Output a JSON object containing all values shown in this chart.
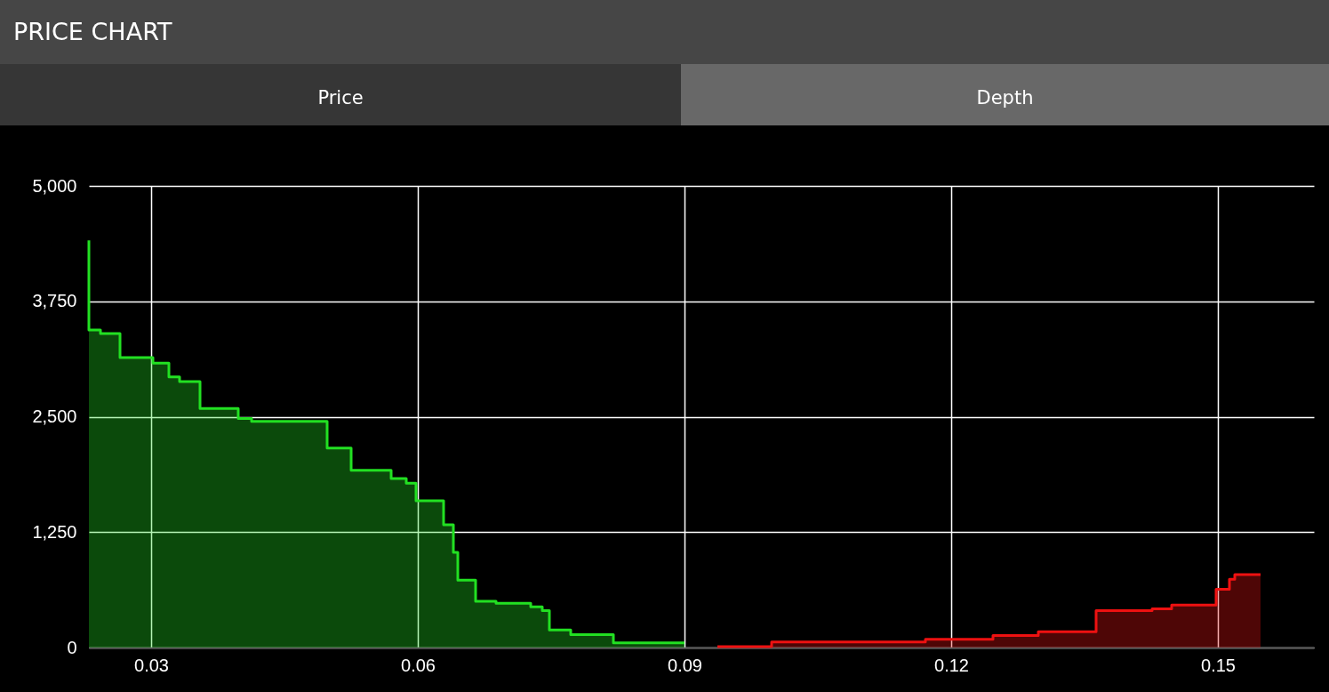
{
  "chart_data": {
    "type": "area",
    "title": "PRICE CHART",
    "annotations": [
      "Price",
      "Depth"
    ],
    "series": [
      {
        "color": "#22e022",
        "x": [
          0.023,
          0.023,
          0.0243,
          0.0243,
          0.0265,
          0.0265,
          0.0302,
          0.0302,
          0.032,
          0.032,
          0.0332,
          0.0332,
          0.0355,
          0.0355,
          0.0398,
          0.0398,
          0.0413,
          0.0413,
          0.0498,
          0.0498,
          0.0525,
          0.0525,
          0.057,
          0.057,
          0.0587,
          0.0587,
          0.0598,
          0.0598,
          0.0629,
          0.0629,
          0.064,
          0.064,
          0.0645,
          0.0645,
          0.0665,
          0.0665,
          0.0688,
          0.0688,
          0.0727,
          0.0727,
          0.074,
          0.074,
          0.0748,
          0.0748,
          0.0772,
          0.0772,
          0.082,
          0.082,
          0.09
        ],
        "values": [
          4410,
          3440,
          3440,
          3400,
          3400,
          3140,
          3140,
          3080,
          3080,
          2930,
          2930,
          2880,
          2880,
          2590,
          2590,
          2480,
          2480,
          2450,
          2450,
          2160,
          2160,
          1920,
          1920,
          1830,
          1830,
          1780,
          1780,
          1590,
          1590,
          1330,
          1330,
          1030,
          1030,
          730,
          730,
          500,
          500,
          480,
          480,
          440,
          440,
          400,
          400,
          190,
          190,
          140,
          140,
          50,
          50
        ]
      },
      {
        "color": "#ee1111",
        "x": [
          0.0937,
          0.0998,
          0.0998,
          0.1171,
          0.1171,
          0.1247,
          0.1247,
          0.1298,
          0.1298,
          0.1363,
          0.1363,
          0.1426,
          0.1426,
          0.1448,
          0.1448,
          0.1498,
          0.1498,
          0.1513,
          0.1513,
          0.1519,
          0.1519,
          0.1548
        ],
        "values": [
          10,
          10,
          60,
          60,
          90,
          90,
          130,
          130,
          170,
          170,
          400,
          400,
          420,
          420,
          460,
          460,
          630,
          630,
          740,
          740,
          790,
          790
        ]
      }
    ],
    "xlim": [
      0.023,
      0.1608
    ],
    "xticks": [
      {
        "value": 0.03,
        "label": "0.03"
      },
      {
        "value": 0.06,
        "label": "0.06"
      },
      {
        "value": 0.09,
        "label": "0.09"
      },
      {
        "value": 0.12,
        "label": "0.12"
      },
      {
        "value": 0.15,
        "label": "0.15"
      }
    ],
    "ylim": [
      0,
      5000
    ],
    "yticks": [
      0,
      {
        "value": 1250,
        "label": "1,250"
      },
      {
        "value": 2500,
        "label": "2,500"
      },
      {
        "value": 3750,
        "label": "3,750"
      },
      {
        "value": 5000,
        "label": "5,000"
      }
    ],
    "grid": true
  }
}
